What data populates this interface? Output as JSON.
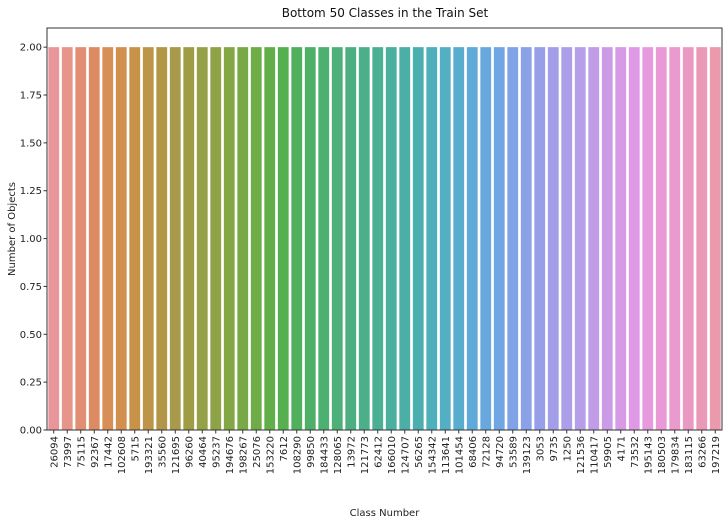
{
  "chart_data": {
    "type": "bar",
    "title": "Bottom 50 Classes in the Train Set",
    "xlabel": "Class Number",
    "ylabel": "Number of Objects",
    "ylim": [
      0,
      2.1
    ],
    "yticks": [
      "0.00",
      "0.25",
      "0.50",
      "0.75",
      "1.00",
      "1.25",
      "1.50",
      "1.75",
      "2.00"
    ],
    "grid": false,
    "legend": "none",
    "categories": [
      "26094",
      "73997",
      "75115",
      "92367",
      "17442",
      "102608",
      "5715",
      "193321",
      "35560",
      "121695",
      "96260",
      "40464",
      "95237",
      "194676",
      "198267",
      "25076",
      "153220",
      "7612",
      "108290",
      "99850",
      "184433",
      "128065",
      "13972",
      "121773",
      "62412",
      "166010",
      "124707",
      "56265",
      "154342",
      "113641",
      "101454",
      "68406",
      "72128",
      "94720",
      "53589",
      "139123",
      "3053",
      "9735",
      "1250",
      "121536",
      "110417",
      "59905",
      "4171",
      "73532",
      "195143",
      "180503",
      "179834",
      "183115",
      "63266",
      "197219"
    ],
    "values": [
      2,
      2,
      2,
      2,
      2,
      2,
      2,
      2,
      2,
      2,
      2,
      2,
      2,
      2,
      2,
      2,
      2,
      2,
      2,
      2,
      2,
      2,
      2,
      2,
      2,
      2,
      2,
      2,
      2,
      2,
      2,
      2,
      2,
      2,
      2,
      2,
      2,
      2,
      2,
      2,
      2,
      2,
      2,
      2,
      2,
      2,
      2,
      2,
      2,
      2
    ],
    "colors": [
      "#e9969a",
      "#e7958a",
      "#e28e75",
      "#dd8b62",
      "#d88e57",
      "#d2904e",
      "#c89248",
      "#bd9549",
      "#b29647",
      "#a79a4a",
      "#9e9d46",
      "#96a046",
      "#8ea246",
      "#84a745",
      "#79a946",
      "#6eac47",
      "#62af49",
      "#56b04f",
      "#51b05d",
      "#4eb067",
      "#4db070",
      "#4db078",
      "#4baf81",
      "#4baf8a",
      "#4aaf93",
      "#4aaf9c",
      "#4bafa6",
      "#4bafb0",
      "#4db0bb",
      "#52afc4",
      "#58adce",
      "#5faad8",
      "#68a8df",
      "#72a5e3",
      "#7fa3e6",
      "#8ba1e8",
      "#979fe8",
      "#a39ee8",
      "#ad9ee9",
      "#b79ee9",
      "#c19de8",
      "#cb9be8",
      "#d69ae7",
      "#e099e6",
      "#e799e0",
      "#e99ad6",
      "#ea9acc",
      "#ea9ac2",
      "#ea9ab7",
      "#ea9aac"
    ]
  }
}
